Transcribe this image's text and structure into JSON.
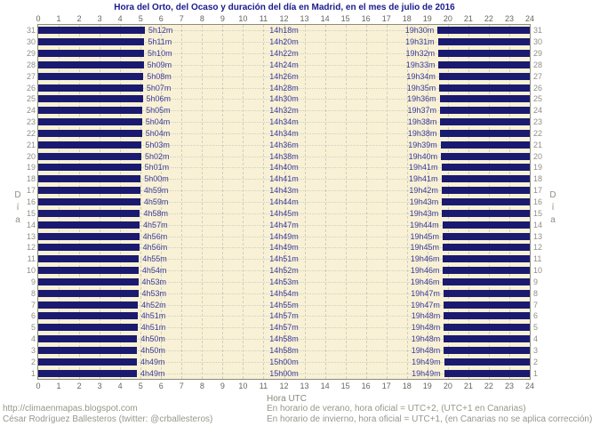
{
  "title": "Hora del Orto, del Ocaso y duración del día en Madrid, en el mes de julio de 2016",
  "axis": {
    "xlabel_bottom": "Hora UTC",
    "ylabel_left": "Día",
    "ylabel_right": "Día",
    "x_ticks": [
      0,
      1,
      2,
      3,
      4,
      5,
      6,
      7,
      8,
      9,
      10,
      11,
      12,
      13,
      14,
      15,
      16,
      17,
      18,
      19,
      20,
      21,
      22,
      23,
      24
    ]
  },
  "footer": {
    "site": "http://climaenmapas.blogspot.com",
    "author": "César Rodríguez Ballesteros (twitter: @crballesteros)",
    "summer": "En horario de verano, hora oficial = UTC+2, (UTC+1 en Canarias)",
    "winter": "En horario de invierno, hora oficial = UTC+1, (en Canarias no se aplica corrección)"
  },
  "colors": {
    "bar_navy": "#1a1a70",
    "time_label_blue": "#3c3c9c",
    "title_navy": "#1a1a8c",
    "plot_background": "#f8f1d5",
    "grid_gray": "#cfcfc0",
    "axis_text_gray": "#66665c",
    "day_text_gray": "#8f8f87",
    "footer_gray": "#97978b",
    "plot_border": "#8a8a7e"
  },
  "chart_data": {
    "type": "bar",
    "subtype": "daylight-band-chart",
    "title": "Hora del Orto, del Ocaso y duración del día en Madrid, en el mes de julio de 2016",
    "xlabel": "Hora UTC",
    "ylabel": "Día",
    "x_range": [
      0,
      24
    ],
    "x_ticks": [
      0,
      1,
      2,
      3,
      4,
      5,
      6,
      7,
      8,
      9,
      10,
      11,
      12,
      13,
      14,
      15,
      16,
      17,
      18,
      19,
      20,
      21,
      22,
      23,
      24
    ],
    "grid": true,
    "legend": false,
    "note": "navy bars = night (00:00→orto and ocaso→24:00); labels per row = orto, duración del día, ocaso",
    "days": [
      {
        "day": 31,
        "orto": "5h12m",
        "duracion": "14h18m",
        "ocaso": "19h30m"
      },
      {
        "day": 30,
        "orto": "5h11m",
        "duracion": "14h20m",
        "ocaso": "19h31m"
      },
      {
        "day": 29,
        "orto": "5h10m",
        "duracion": "14h22m",
        "ocaso": "19h32m"
      },
      {
        "day": 28,
        "orto": "5h09m",
        "duracion": "14h24m",
        "ocaso": "19h33m"
      },
      {
        "day": 27,
        "orto": "5h08m",
        "duracion": "14h26m",
        "ocaso": "19h34m"
      },
      {
        "day": 26,
        "orto": "5h07m",
        "duracion": "14h28m",
        "ocaso": "19h35m"
      },
      {
        "day": 25,
        "orto": "5h06m",
        "duracion": "14h30m",
        "ocaso": "19h36m"
      },
      {
        "day": 24,
        "orto": "5h05m",
        "duracion": "14h32m",
        "ocaso": "19h37m"
      },
      {
        "day": 23,
        "orto": "5h04m",
        "duracion": "14h34m",
        "ocaso": "19h38m"
      },
      {
        "day": 22,
        "orto": "5h04m",
        "duracion": "14h34m",
        "ocaso": "19h38m"
      },
      {
        "day": 21,
        "orto": "5h03m",
        "duracion": "14h36m",
        "ocaso": "19h39m"
      },
      {
        "day": 20,
        "orto": "5h02m",
        "duracion": "14h38m",
        "ocaso": "19h40m"
      },
      {
        "day": 19,
        "orto": "5h01m",
        "duracion": "14h40m",
        "ocaso": "19h41m"
      },
      {
        "day": 18,
        "orto": "5h00m",
        "duracion": "14h41m",
        "ocaso": "19h41m"
      },
      {
        "day": 17,
        "orto": "4h59m",
        "duracion": "14h43m",
        "ocaso": "19h42m"
      },
      {
        "day": 16,
        "orto": "4h59m",
        "duracion": "14h44m",
        "ocaso": "19h43m"
      },
      {
        "day": 15,
        "orto": "4h58m",
        "duracion": "14h45m",
        "ocaso": "19h43m"
      },
      {
        "day": 14,
        "orto": "4h57m",
        "duracion": "14h47m",
        "ocaso": "19h44m"
      },
      {
        "day": 13,
        "orto": "4h56m",
        "duracion": "14h49m",
        "ocaso": "19h45m"
      },
      {
        "day": 12,
        "orto": "4h56m",
        "duracion": "14h49m",
        "ocaso": "19h45m"
      },
      {
        "day": 11,
        "orto": "4h55m",
        "duracion": "14h51m",
        "ocaso": "19h46m"
      },
      {
        "day": 10,
        "orto": "4h54m",
        "duracion": "14h52m",
        "ocaso": "19h46m"
      },
      {
        "day": 9,
        "orto": "4h53m",
        "duracion": "14h53m",
        "ocaso": "19h46m"
      },
      {
        "day": 8,
        "orto": "4h53m",
        "duracion": "14h54m",
        "ocaso": "19h47m"
      },
      {
        "day": 7,
        "orto": "4h52m",
        "duracion": "14h55m",
        "ocaso": "19h47m"
      },
      {
        "day": 6,
        "orto": "4h51m",
        "duracion": "14h57m",
        "ocaso": "19h48m"
      },
      {
        "day": 5,
        "orto": "4h51m",
        "duracion": "14h57m",
        "ocaso": "19h48m"
      },
      {
        "day": 4,
        "orto": "4h50m",
        "duracion": "14h58m",
        "ocaso": "19h48m"
      },
      {
        "day": 3,
        "orto": "4h50m",
        "duracion": "14h58m",
        "ocaso": "19h48m"
      },
      {
        "day": 2,
        "orto": "4h49m",
        "duracion": "15h00m",
        "ocaso": "19h49m"
      },
      {
        "day": 1,
        "orto": "4h49m",
        "duracion": "15h00m",
        "ocaso": "19h49m"
      }
    ]
  }
}
